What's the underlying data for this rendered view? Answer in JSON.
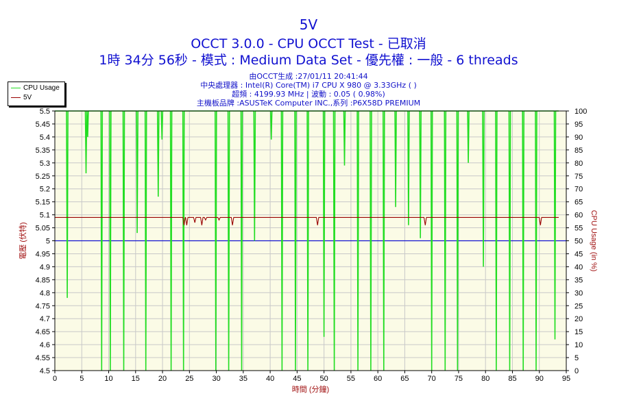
{
  "header": {
    "title": "5V",
    "subtitle": "OCCT 3.0.0 - CPU OCCT Test - 已取消",
    "run_line": "1時 34分 56秒 - 模式 : Medium Data Set - 優先權 : 一般 - 6 threads"
  },
  "info": {
    "generated": "由OCCT生成 :27/01/11 20:41:44",
    "cpu": "中央處理器 : Intel(R) Core(TM) i7 CPU X 980 @ 3.33GHz (   )",
    "clock": "超頻 : 4199.93 MHz | 波動 : 0.05 ( 0.98%)",
    "board": "主機板品牌 :ASUSTeK Computer INC.,系列 :P6X58D PREMIUM"
  },
  "legend": {
    "items": [
      {
        "label": "CPU Usage",
        "color": "#22dd22"
      },
      {
        "label": "5V",
        "color": "#990000"
      }
    ]
  },
  "colors": {
    "plot_bg": "#fbfbe6",
    "grid": "#c8c8c8",
    "cpu": "#22dd22",
    "voltage": "#990000",
    "reference": "#1010d0",
    "axis_text": "#000000",
    "axis_title": "#a01010"
  },
  "chart_data": {
    "type": "line",
    "xlabel": "時間 (分鐘)",
    "ylabel_left": "電壓 (伏特)",
    "ylabel_right": "CPU Usage (in %)",
    "xlim": [
      0,
      95
    ],
    "ylim_left": [
      4.5,
      5.5
    ],
    "ylim_right": [
      0,
      100
    ],
    "x_ticks": [
      "0",
      "5",
      "10",
      "15",
      "20",
      "25",
      "30",
      "35",
      "40",
      "45",
      "50",
      "55",
      "60",
      "65",
      "70",
      "75",
      "80",
      "85",
      "90",
      "95"
    ],
    "y_left_ticks": [
      "4.5",
      "4.55",
      "4.6",
      "4.65",
      "4.7",
      "4.75",
      "4.8",
      "4.85",
      "4.9",
      "4.95",
      "5",
      "5.05",
      "5.1",
      "5.15",
      "5.2",
      "5.25",
      "5.3",
      "5.35",
      "5.4",
      "5.45",
      "5.5"
    ],
    "y_right_ticks": [
      "0",
      "5",
      "10",
      "15",
      "20",
      "25",
      "30",
      "35",
      "40",
      "45",
      "50",
      "55",
      "60",
      "65",
      "70",
      "75",
      "80",
      "85",
      "90",
      "95",
      "100"
    ],
    "grid": true,
    "legend_position": "top-left",
    "reference_line": {
      "axis": "left",
      "value": 5.0
    },
    "series": [
      {
        "name": "5V",
        "axis": "left",
        "baseline": 5.09,
        "dips": [
          {
            "x": 24.0,
            "value": 5.06
          },
          {
            "x": 24.5,
            "value": 5.06
          },
          {
            "x": 26.0,
            "value": 5.07
          },
          {
            "x": 27.3,
            "value": 5.06
          },
          {
            "x": 28.0,
            "value": 5.08
          },
          {
            "x": 30.5,
            "value": 5.08
          },
          {
            "x": 33.0,
            "value": 5.06
          },
          {
            "x": 48.8,
            "value": 5.06
          },
          {
            "x": 68.8,
            "value": 5.06
          },
          {
            "x": 90.2,
            "value": 5.06
          }
        ]
      },
      {
        "name": "CPU Usage",
        "axis": "right",
        "baseline": 100,
        "dips": [
          {
            "x": 2.3,
            "value": 28
          },
          {
            "x": 5.8,
            "value": 76
          },
          {
            "x": 6.1,
            "value": 90
          },
          {
            "x": 8.7,
            "value": 0
          },
          {
            "x": 10.3,
            "value": 0
          },
          {
            "x": 12.8,
            "value": 0
          },
          {
            "x": 15.3,
            "value": 53
          },
          {
            "x": 16.9,
            "value": 0
          },
          {
            "x": 19.2,
            "value": 67
          },
          {
            "x": 19.9,
            "value": 89
          },
          {
            "x": 21.6,
            "value": 0
          },
          {
            "x": 23.9,
            "value": 0
          },
          {
            "x": 29.9,
            "value": 0
          },
          {
            "x": 32.3,
            "value": 0
          },
          {
            "x": 34.7,
            "value": 0
          },
          {
            "x": 37.1,
            "value": 50
          },
          {
            "x": 40.2,
            "value": 89
          },
          {
            "x": 42.2,
            "value": 0
          },
          {
            "x": 44.7,
            "value": 0
          },
          {
            "x": 47.0,
            "value": 0
          },
          {
            "x": 50.0,
            "value": 13
          },
          {
            "x": 51.9,
            "value": 0
          },
          {
            "x": 53.8,
            "value": 79
          },
          {
            "x": 56.3,
            "value": 0
          },
          {
            "x": 58.7,
            "value": 0
          },
          {
            "x": 61.1,
            "value": 0
          },
          {
            "x": 63.3,
            "value": 63
          },
          {
            "x": 65.7,
            "value": 56
          },
          {
            "x": 67.9,
            "value": 51
          },
          {
            "x": 70.0,
            "value": 0
          },
          {
            "x": 72.5,
            "value": 0
          },
          {
            "x": 74.8,
            "value": 0
          },
          {
            "x": 76.8,
            "value": 80
          },
          {
            "x": 79.6,
            "value": 40
          },
          {
            "x": 82.0,
            "value": 0
          },
          {
            "x": 84.5,
            "value": 0
          },
          {
            "x": 87.0,
            "value": 0
          },
          {
            "x": 89.4,
            "value": 0
          },
          {
            "x": 92.9,
            "value": 12
          }
        ]
      }
    ]
  }
}
